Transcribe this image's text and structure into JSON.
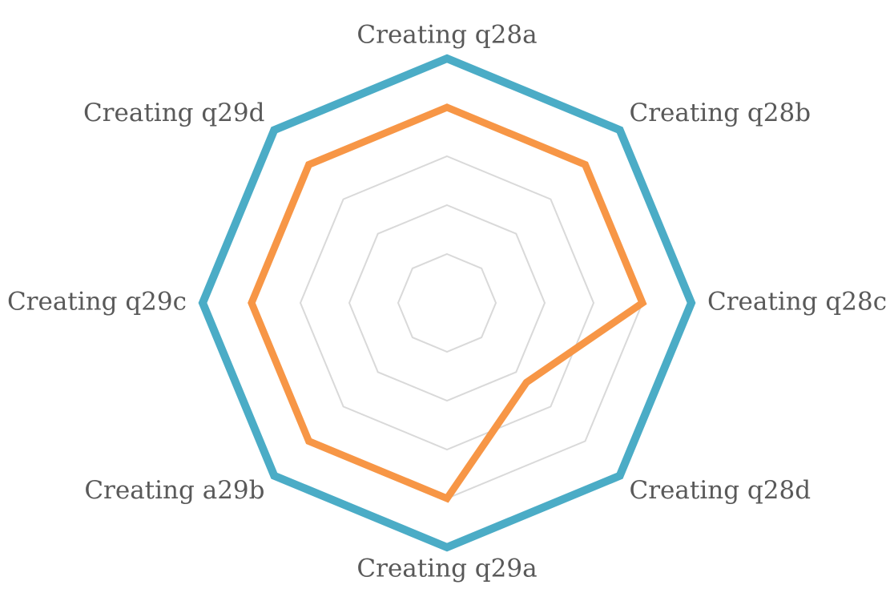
{
  "chart_data": {
    "type": "radar",
    "title": "",
    "categories": [
      "Creating q28a",
      "Creating q28b",
      "Creating q28c",
      "Creating q28d",
      "Creating q29a",
      "Creating a29b",
      "Creating q29c",
      "Creating q29d"
    ],
    "rlim": [
      0,
      5
    ],
    "gridlines": [
      1,
      2,
      3,
      4,
      5
    ],
    "legend": "none",
    "series": [
      {
        "color": "#4BACC6",
        "values": [
          5,
          5,
          5,
          5,
          5,
          5,
          5,
          5
        ]
      },
      {
        "color": "#F79646",
        "values": [
          4,
          4,
          4,
          2.3,
          4,
          4,
          4,
          4
        ]
      }
    ],
    "grid_color": "#D9D9D9",
    "label_color": "#595959"
  }
}
